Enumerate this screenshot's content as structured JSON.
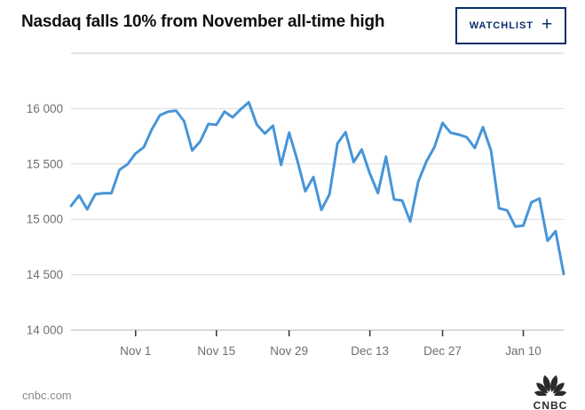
{
  "header": {
    "title": "Nasdaq falls 10% from November all-time high",
    "watchlist_label": "WATCHLIST",
    "watchlist_plus": "+"
  },
  "footer": {
    "source": "cnbc.com",
    "logo_text": "CNBC"
  },
  "colors": {
    "accent_navy": "#0a2e66",
    "line_blue": "#4795d8",
    "grid_gray": "#d9d9d9",
    "axis_gray": "#b5b5b5",
    "label_gray": "#6f6f6f"
  },
  "chart_data": {
    "type": "line",
    "title": "Nasdaq falls 10% from November all-time high",
    "xlabel": "",
    "ylabel": "",
    "ylim": [
      14000,
      16500
    ],
    "grid": true,
    "legend": "none",
    "x": [
      "Oct 20",
      "Oct 21",
      "Oct 22",
      "Oct 25",
      "Oct 26",
      "Oct 27",
      "Oct 28",
      "Oct 29",
      "Nov 1",
      "Nov 2",
      "Nov 3",
      "Nov 4",
      "Nov 5",
      "Nov 8",
      "Nov 9",
      "Nov 10",
      "Nov 11",
      "Nov 12",
      "Nov 15",
      "Nov 16",
      "Nov 17",
      "Nov 18",
      "Nov 19",
      "Nov 22",
      "Nov 23",
      "Nov 24",
      "Nov 26",
      "Nov 29",
      "Nov 30",
      "Dec 1",
      "Dec 2",
      "Dec 3",
      "Dec 6",
      "Dec 7",
      "Dec 8",
      "Dec 9",
      "Dec 10",
      "Dec 13",
      "Dec 14",
      "Dec 15",
      "Dec 16",
      "Dec 17",
      "Dec 20",
      "Dec 21",
      "Dec 22",
      "Dec 23",
      "Dec 27",
      "Dec 28",
      "Dec 29",
      "Dec 30",
      "Dec 31",
      "Jan 3",
      "Jan 4",
      "Jan 5",
      "Jan 6",
      "Jan 7",
      "Jan 10",
      "Jan 11",
      "Jan 12",
      "Jan 13",
      "Jan 14",
      "Jan 18"
    ],
    "values": [
      15121.7,
      15215.7,
      15090.2,
      15226.7,
      15235.7,
      15235.8,
      15448.1,
      15498.4,
      15595.9,
      15649.6,
      15811.6,
      15940.3,
      15971.6,
      15982.4,
      15886.5,
      15622.7,
      15704.3,
      15861.0,
      15853.9,
      15973.9,
      15921.6,
      15993.7,
      16057.4,
      15854.8,
      15775.1,
      15845.2,
      15491.7,
      15782.8,
      15537.7,
      15254.1,
      15381.3,
      15085.5,
      15225.2,
      15686.9,
      15787.0,
      15517.4,
      15630.6,
      15413.3,
      15237.6,
      15565.6,
      15180.4,
      15169.7,
      14980.9,
      15341.1,
      15521.9,
      15653.4,
      15871.3,
      15781.7,
      15766.2,
      15741.6,
      15645.0,
      15832.8,
      15622.7,
      15100.2,
      15080.9,
      14935.9,
      14942.8,
      15153.5,
      15188.4,
      14806.8,
      14893.8,
      14506.9
    ],
    "xticks": [
      {
        "index": 8,
        "label": "Nov 1"
      },
      {
        "index": 18,
        "label": "Nov 15"
      },
      {
        "index": 27,
        "label": "Nov 29"
      },
      {
        "index": 37,
        "label": "Dec 13"
      },
      {
        "index": 46,
        "label": "Dec 27"
      },
      {
        "index": 56,
        "label": "Jan 10"
      }
    ],
    "yticks": [
      {
        "value": 16000,
        "label": "16 000"
      },
      {
        "value": 15500,
        "label": "15 500"
      },
      {
        "value": 15000,
        "label": "15 000"
      },
      {
        "value": 14500,
        "label": "14 500"
      },
      {
        "value": 14000,
        "label": "14 000"
      }
    ]
  }
}
